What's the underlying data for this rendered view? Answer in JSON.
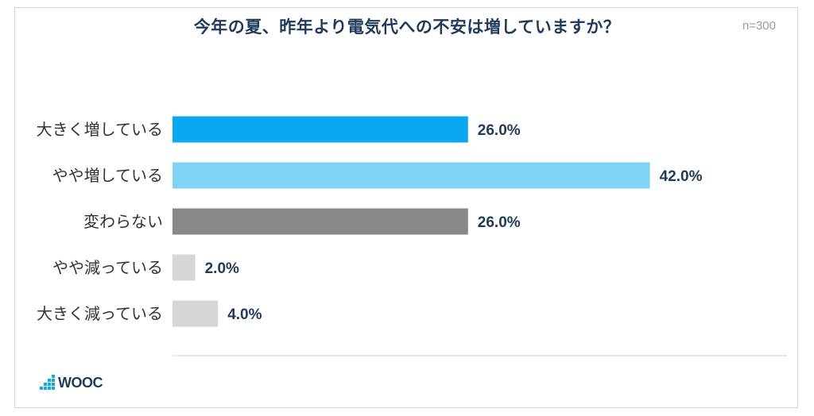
{
  "chart_data": {
    "type": "bar",
    "orientation": "horizontal",
    "title": "今年の夏、昨年より電気代への不安は増していますか？",
    "note": "n=300",
    "categories": [
      "大きく増している",
      "やや増している",
      "変わらない",
      "やや減っている",
      "大きく減っている"
    ],
    "values": [
      26.0,
      42.0,
      26.0,
      2.0,
      4.0
    ],
    "value_labels": [
      "26.0%",
      "42.0%",
      "26.0%",
      "2.0%",
      "4.0%"
    ],
    "colors": [
      "#0aa8f0",
      "#7fd3f5",
      "#888888",
      "#d6d6d6",
      "#d6d6d6"
    ],
    "xlim": [
      0,
      100
    ],
    "grid": false,
    "legend": "none"
  },
  "logo": {
    "text": "WOOC"
  }
}
